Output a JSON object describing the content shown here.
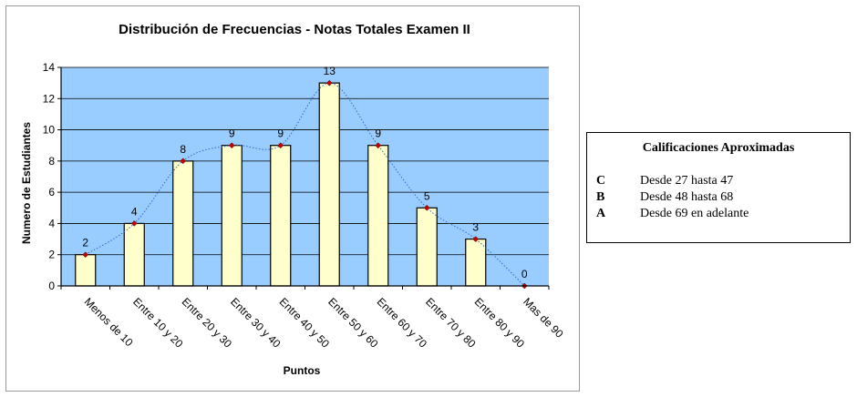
{
  "chart_data": {
    "type": "bar",
    "title": "Distribución de Frecuencias - Notas Totales Examen II",
    "xlabel": "Puntos",
    "ylabel": "Numero de Estudiantes",
    "categories": [
      "Menos de 10",
      "Entre 10 y 20",
      "Entre 20 y 30",
      "Entre 30 y 40",
      "Entre 40 y 50",
      "Entre 50 y 60",
      "Entre 60 y 70",
      "Entre 70 y 80",
      "Entre 80 y 90",
      "Mas de 90"
    ],
    "values": [
      2,
      4,
      8,
      9,
      9,
      13,
      9,
      5,
      3,
      0
    ],
    "ylim": [
      0,
      14
    ],
    "yticks": [
      0,
      2,
      4,
      6,
      8,
      10,
      12,
      14
    ],
    "grid": true,
    "trendline": "dotted",
    "colors": {
      "plot_background": "#99ccff",
      "bar_fill": "#ffffcc",
      "bar_stroke": "#000000",
      "marker": "#cc0000",
      "trendline": "#3366cc"
    }
  },
  "legend_box": {
    "title": "Calificaciones Aproximadas",
    "rows": [
      {
        "grade": "C",
        "range": "Desde 27 hasta 47"
      },
      {
        "grade": "B",
        "range": "Desde 48 hasta 68"
      },
      {
        "grade": "A",
        "range": "Desde 69 en adelante"
      }
    ]
  }
}
